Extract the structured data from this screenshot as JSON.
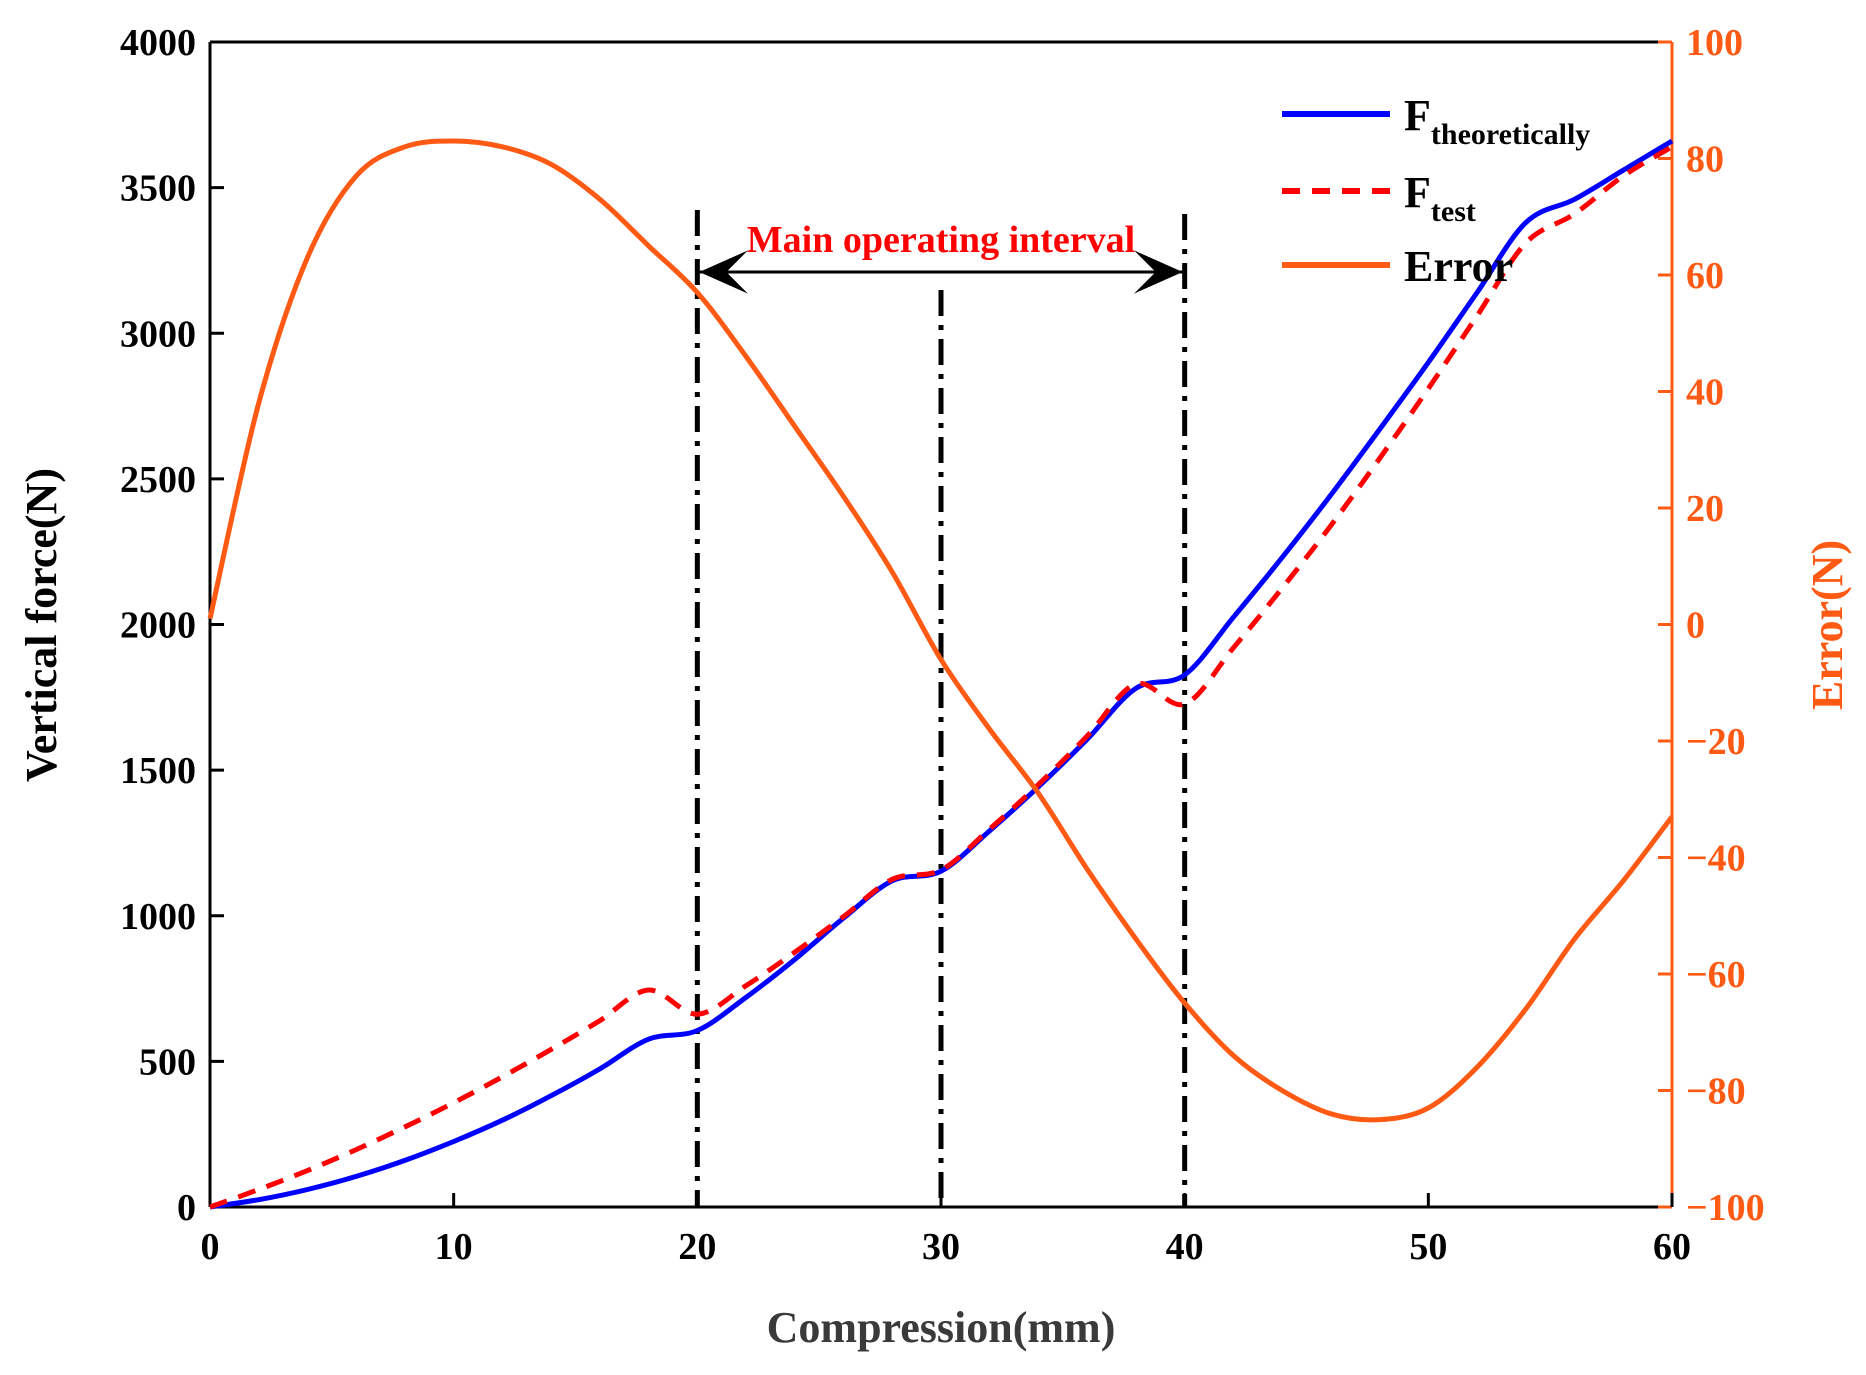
{
  "chart_data": {
    "type": "line",
    "x": [
      0,
      2,
      4,
      6,
      8,
      10,
      12,
      14,
      16,
      18,
      20,
      22,
      24,
      26,
      28,
      30,
      32,
      34,
      36,
      38,
      40,
      42,
      44,
      46,
      48,
      50,
      52,
      54,
      56,
      58,
      60
    ],
    "xlabel": "Compression(mm)",
    "ylabel": "Vertical force(N)",
    "y2label": "Error(N)",
    "xlim": [
      0,
      60
    ],
    "ylim": [
      0,
      4000
    ],
    "y2lim": [
      -100,
      100
    ],
    "xticks": [
      "0",
      "10",
      "20",
      "30",
      "40",
      "50",
      "60"
    ],
    "yticks": [
      "0",
      "500",
      "1000",
      "1500",
      "2000",
      "2500",
      "3000",
      "3500",
      "4000"
    ],
    "y2ticks": [
      "−100",
      "−80",
      "−60",
      "−40",
      "−20",
      "0",
      "20",
      "40",
      "60",
      "80",
      "100"
    ],
    "series": [
      {
        "name": "F",
        "subscript": "theoretically",
        "axis": "left",
        "color": "#0000ff",
        "style": "solid",
        "values": [
          0,
          25,
          60,
          105,
          160,
          225,
          298,
          382,
          474,
          576,
          606,
          720,
          850,
          992,
          1120,
          1153,
          1292,
          1443,
          1606,
          1781,
          1827,
          2025,
          2230,
          2445,
          2670,
          2900,
          3140,
          3380,
          3460,
          3560,
          3660
        ]
      },
      {
        "name": "F",
        "subscript": "test",
        "axis": "left",
        "color": "#ff0000",
        "style": "dashed",
        "values": [
          0,
          60,
          125,
          197,
          275,
          358,
          447,
          541,
          640,
          745,
          662,
          760,
          875,
          997,
          1125,
          1157,
          1298,
          1451,
          1617,
          1796,
          1727,
          1920,
          2125,
          2340,
          2570,
          2810,
          3060,
          3310,
          3410,
          3540,
          3640
        ]
      },
      {
        "name": "Error",
        "axis": "right",
        "color": "#ff5a14",
        "style": "solid",
        "values": [
          1,
          38,
          63,
          77,
          82,
          83,
          82,
          79,
          73,
          65,
          57,
          46,
          34,
          22,
          9,
          -6,
          -18,
          -29,
          -42,
          -54,
          -65,
          -74,
          -80,
          -84,
          -85,
          -83,
          -76,
          -66,
          -54,
          -44,
          -33
        ]
      }
    ],
    "legend": {
      "position": "top-right"
    },
    "annotations": {
      "text": "Main operating interval",
      "interval": [
        20,
        40
      ],
      "vlines": [
        20,
        30,
        40
      ]
    }
  },
  "colors": {
    "axis": "#000000",
    "right_axis": "#ff5a14",
    "annotation": "#ff0000"
  }
}
